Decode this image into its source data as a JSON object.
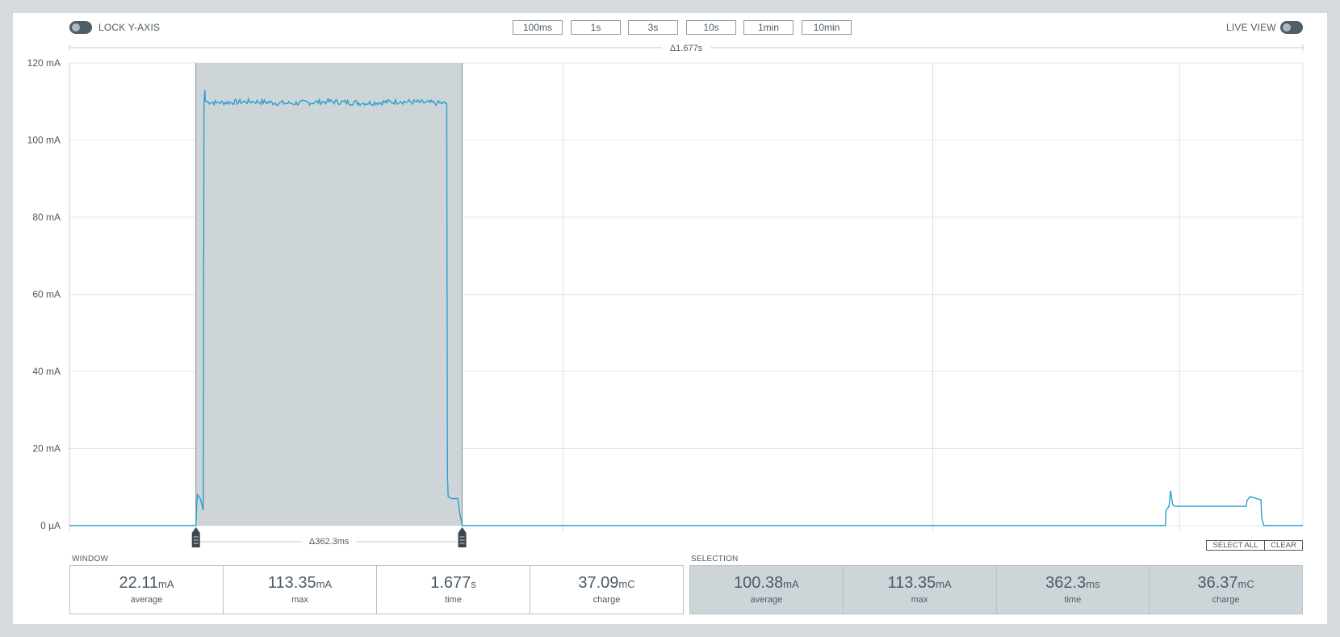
{
  "toolbar": {
    "lock_y_axis_label": "LOCK Y-AXIS",
    "live_view_label": "LIVE VIEW",
    "window_buttons": [
      "100ms",
      "1s",
      "3s",
      "10s",
      "1min",
      "10min"
    ]
  },
  "chart_data": {
    "type": "line",
    "window_delta_label": "Δ1.677s",
    "selection_delta_label": "Δ362.3ms",
    "y_ticks": [
      "120 mA",
      "100 mA",
      "80 mA",
      "60 mA",
      "40 mA",
      "20 mA",
      "0 µA"
    ],
    "ylim": [
      0,
      120
    ],
    "xlim_s": [
      0,
      1.677
    ],
    "selection_s": [
      0.172,
      0.534
    ],
    "series": [
      {
        "color": "#29a0ce",
        "x": [
          0,
          0.172,
          0.173,
          0.174,
          0.178,
          0.182,
          0.183,
          0.184,
          0.185,
          0.2,
          0.25,
          0.3,
          0.35,
          0.4,
          0.45,
          0.5,
          0.513,
          0.514,
          0.515,
          0.52,
          0.528,
          0.531,
          0.534,
          1.0,
          1.49,
          1.491,
          1.495,
          1.497,
          1.5,
          1.503,
          1.6,
          1.601,
          1.605,
          1.62,
          1.621,
          1.624,
          1.677
        ],
        "y": [
          0,
          0,
          5,
          8,
          7,
          4,
          110,
          113,
          110,
          109.7,
          110,
          109.5,
          110,
          109.6,
          110,
          109.6,
          109.5,
          13,
          7.5,
          7,
          7,
          3,
          0,
          0,
          0,
          4,
          5,
          9,
          5.5,
          5,
          5,
          6.5,
          7.5,
          6.7,
          2,
          0,
          0
        ]
      }
    ]
  },
  "window_stats": {
    "title": "WINDOW",
    "average": {
      "value": "22.11",
      "unit": "mA",
      "label": "average"
    },
    "max": {
      "value": "113.35",
      "unit": "mA",
      "label": "max"
    },
    "time": {
      "value": "1.677",
      "unit": "s",
      "label": "time"
    },
    "charge": {
      "value": "37.09",
      "unit": "mC",
      "label": "charge"
    }
  },
  "selection_stats": {
    "title": "SELECTION",
    "select_all_label": "SELECT ALL",
    "clear_label": "CLEAR",
    "average": {
      "value": "100.38",
      "unit": "mA",
      "label": "average"
    },
    "max": {
      "value": "113.35",
      "unit": "mA",
      "label": "max"
    },
    "time": {
      "value": "362.3",
      "unit": "ms",
      "label": "time"
    },
    "charge": {
      "value": "36.37",
      "unit": "mC",
      "label": "charge"
    }
  },
  "colors": {
    "trace": "#29a0ce",
    "selection": "#ced5d9",
    "panel_bg": "#d6dbdf"
  }
}
